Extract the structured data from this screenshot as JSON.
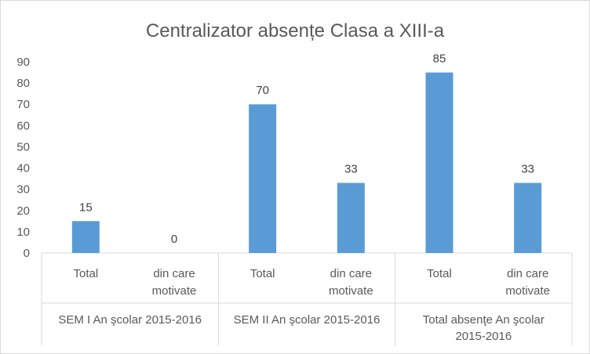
{
  "chart_data": {
    "type": "bar",
    "title": "Centralizator absențe Clasa a XIII-a",
    "xlabel": "",
    "ylabel": "",
    "ylim": [
      0,
      90
    ],
    "yticks": [
      0,
      10,
      20,
      30,
      40,
      50,
      60,
      70,
      80,
      90
    ],
    "grid": false,
    "legend": "none",
    "bar_color": "#5b9bd5",
    "groups": [
      {
        "label": "SEM I An şcolar 2015-2016",
        "label_lines": [
          "SEM I An şcolar 2015-2016"
        ],
        "categories": [
          {
            "label_lines": [
              "Total"
            ],
            "value": 15
          },
          {
            "label_lines": [
              "din care",
              "motivate"
            ],
            "value": 0
          }
        ]
      },
      {
        "label": "SEM II An şcolar 2015-2016",
        "label_lines": [
          "SEM II An şcolar 2015-2016"
        ],
        "categories": [
          {
            "label_lines": [
              "Total"
            ],
            "value": 70
          },
          {
            "label_lines": [
              "din care",
              "motivate"
            ],
            "value": 33
          }
        ]
      },
      {
        "label": "Total absenţe An şcolar 2015-2016",
        "label_lines": [
          "Total absenţe An şcolar",
          "2015-2016"
        ],
        "categories": [
          {
            "label_lines": [
              "Total"
            ],
            "value": 85
          },
          {
            "label_lines": [
              "din care",
              "motivate"
            ],
            "value": 33
          }
        ]
      }
    ]
  }
}
